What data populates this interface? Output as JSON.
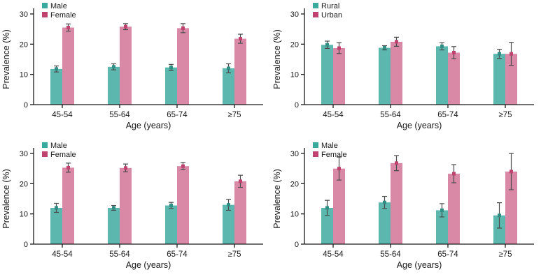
{
  "page": {
    "background": "#ffffff"
  },
  "colors": {
    "teal_bar": "#5cb8ae",
    "pink_bar": "#d989a5",
    "teal_legend": "#3aa99e",
    "crimson_legend": "#c0426e",
    "error_bar": "#4a4a4a",
    "axis": "#1a1a1a"
  },
  "chart_data": [
    {
      "type": "bar",
      "title": "",
      "categories": [
        "45-54",
        "55-64",
        "65-74",
        "≥75"
      ],
      "xlabel": "Age (years)",
      "ylabel": "Prevalence (%)",
      "ylim": [
        0,
        30
      ],
      "yticks": [
        0,
        10,
        20,
        30
      ],
      "legend_position": "top-left",
      "series": [
        {
          "name": "Male",
          "color": "#5cb8ae",
          "marker_color": "#2f8f85",
          "legend_color": "#3aa99e",
          "values": [
            11.8,
            12.5,
            12.3,
            12.0
          ],
          "errors": [
            1.0,
            1.0,
            1.0,
            1.5
          ]
        },
        {
          "name": "Female",
          "color": "#d989a5",
          "marker_color": "#c0426e",
          "legend_color": "#c0426e",
          "values": [
            25.5,
            25.8,
            25.3,
            21.8
          ],
          "errors": [
            1.2,
            1.0,
            1.5,
            1.5
          ]
        }
      ]
    },
    {
      "type": "bar",
      "title": "",
      "categories": [
        "45-54",
        "55-64",
        "65-74",
        "≥75"
      ],
      "xlabel": "Age (years)",
      "ylabel": "Prevalence (%)",
      "ylim": [
        0,
        30
      ],
      "yticks": [
        0,
        10,
        20,
        30
      ],
      "legend_position": "top-left",
      "series": [
        {
          "name": "Rural",
          "color": "#5cb8ae",
          "marker_color": "#2f8f85",
          "legend_color": "#3aa99e",
          "values": [
            19.8,
            18.8,
            19.3,
            16.8
          ],
          "errors": [
            1.2,
            0.7,
            1.2,
            1.5
          ]
        },
        {
          "name": "Urban",
          "color": "#d989a5",
          "marker_color": "#c0426e",
          "legend_color": "#c0426e",
          "values": [
            18.7,
            20.8,
            17.2,
            16.8
          ],
          "errors": [
            1.8,
            1.5,
            2.0,
            3.8
          ]
        }
      ]
    },
    {
      "type": "bar",
      "title": "",
      "categories": [
        "45-54",
        "55-64",
        "65-74",
        "≥75"
      ],
      "xlabel": "Age (years)",
      "ylabel": "Prevalence (%)",
      "ylim": [
        0,
        30
      ],
      "yticks": [
        0,
        10,
        20,
        30
      ],
      "legend_position": "top-left",
      "series": [
        {
          "name": "Male",
          "color": "#5cb8ae",
          "marker_color": "#2f8f85",
          "legend_color": "#3aa99e",
          "values": [
            12.0,
            12.0,
            12.8,
            13.0
          ],
          "errors": [
            1.5,
            0.8,
            1.0,
            1.8
          ]
        },
        {
          "name": "Female",
          "color": "#d989a5",
          "marker_color": "#c0426e",
          "legend_color": "#c0426e",
          "values": [
            25.3,
            25.2,
            25.8,
            20.8
          ],
          "errors": [
            1.5,
            1.3,
            1.2,
            2.0
          ]
        }
      ]
    },
    {
      "type": "bar",
      "title": "",
      "categories": [
        "45-54",
        "55-64",
        "65-74",
        "≥75"
      ],
      "xlabel": "Age (years)",
      "ylabel": "Prevalence (%)",
      "ylim": [
        0,
        30
      ],
      "yticks": [
        0,
        10,
        20,
        30
      ],
      "legend_position": "top-left",
      "series": [
        {
          "name": "Male",
          "color": "#5cb8ae",
          "marker_color": "#2f8f85",
          "legend_color": "#3aa99e",
          "values": [
            12.0,
            13.8,
            11.2,
            9.5
          ],
          "errors": [
            2.5,
            2.0,
            2.2,
            4.2
          ]
        },
        {
          "name": "Female",
          "color": "#d989a5",
          "marker_color": "#c0426e",
          "legend_color": "#c0426e",
          "values": [
            25.0,
            26.8,
            23.3,
            24.0
          ],
          "errors": [
            3.8,
            2.5,
            3.0,
            6.0
          ]
        }
      ]
    }
  ]
}
